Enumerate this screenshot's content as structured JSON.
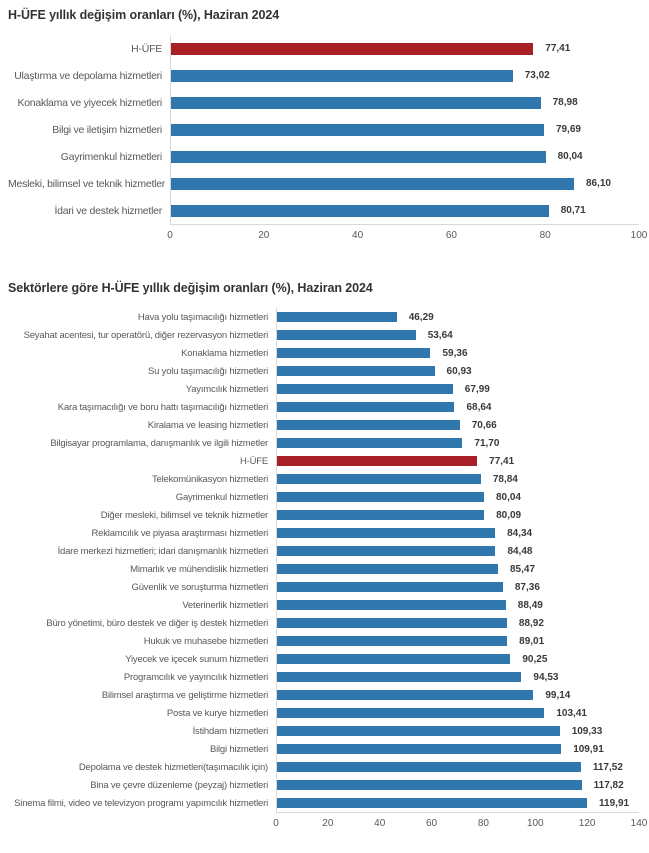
{
  "colors": {
    "background": "#FFFFFF",
    "bar_default": "#2F77AD",
    "bar_highlight": "#A81F25",
    "title_text": "#333333",
    "category_text": "#595959",
    "value_text": "#3A3A3A",
    "tick_text": "#595959",
    "axis_line": "#D9D9D9"
  },
  "chart_data": [
    {
      "type": "bar",
      "orientation": "horizontal",
      "title": "H-ÜFE yıllık değişim oranları (%), Haziran 2024",
      "xlabel": "",
      "ylabel": "",
      "xlim": [
        0,
        100
      ],
      "x_ticks": [
        0,
        20,
        40,
        60,
        80,
        100
      ],
      "grid": false,
      "legend": "none",
      "highlight_category": "H-ÜFE",
      "categories": [
        "H-ÜFE",
        "Ulaştırma ve depolama hizmetleri",
        "Konaklama ve yiyecek hizmetleri",
        "Bilgi ve iletişim hizmetleri",
        "Gayrimenkul hizmetleri",
        "Mesleki, bilimsel ve teknik hizmetler",
        "İdari ve destek hizmetler"
      ],
      "values": [
        77.41,
        73.02,
        78.98,
        79.69,
        80.04,
        86.1,
        80.71
      ],
      "value_labels": [
        "77,41",
        "73,02",
        "78,98",
        "79,69",
        "80,04",
        "86,10",
        "80,71"
      ]
    },
    {
      "type": "bar",
      "orientation": "horizontal",
      "title": "Sektörlere göre H-ÜFE yıllık değişim oranları (%), Haziran 2024",
      "xlabel": "",
      "ylabel": "",
      "xlim": [
        0,
        140
      ],
      "x_ticks": [
        0,
        20,
        40,
        60,
        80,
        100,
        120,
        140
      ],
      "grid": false,
      "legend": "none",
      "highlight_category": "H-ÜFE",
      "categories": [
        "Hava yolu taşımacılığı hizmetleri",
        "Seyahat acentesi, tur operatörü, diğer rezervasyon hizmetleri",
        "Konaklama hizmetleri",
        "Su yolu taşımacılığı hizmetleri",
        "Yayımcılık hizmetleri",
        "Kara taşımacılığı ve boru hattı taşımacılığı hizmetleri",
        "Kiralama ve leasing hizmetleri",
        "Bilgisayar programlama, danışmanlık ve ilgili hizmetler",
        "H-ÜFE",
        "Telekomünikasyon hizmetleri",
        "Gayrimenkul hizmetleri",
        "Diğer mesleki, bilimsel ve teknik hizmetler",
        "Reklamcılık ve piyasa araştırması hizmetleri",
        "İdare merkezi hizmetleri; idari danışmanlık hizmetleri",
        "Mimarlık ve mühendislik hizmetleri",
        "Güvenlik ve soruşturma hizmetleri",
        "Veterinerlik hizmetleri",
        "Büro yönetimi, büro destek ve diğer iş destek hizmetleri",
        "Hukuk ve muhasebe hizmetleri",
        "Yiyecek ve içecek sunum hizmetleri",
        "Programcılık ve yayıncılık hizmetleri",
        "Bilimsel araştırma ve geliştirme hizmetleri",
        "Posta ve kurye hizmetleri",
        "İstihdam hizmetleri",
        "Bilgi hizmetleri",
        "Depolama ve destek hizmetleri(taşımacılık için)",
        "Bina ve çevre düzenleme (peyzaj) hizmetleri",
        "Sinema filmi, video ve televizyon programı yapımcılık hizmetleri"
      ],
      "values": [
        46.29,
        53.64,
        59.36,
        60.93,
        67.99,
        68.64,
        70.66,
        71.7,
        77.41,
        78.84,
        80.04,
        80.09,
        84.34,
        84.48,
        85.47,
        87.36,
        88.49,
        88.92,
        89.01,
        90.25,
        94.53,
        99.14,
        103.41,
        109.33,
        109.91,
        117.52,
        117.82,
        119.91
      ],
      "value_labels": [
        "46,29",
        "53,64",
        "59,36",
        "60,93",
        "67,99",
        "68,64",
        "70,66",
        "71,70",
        "77,41",
        "78,84",
        "80,04",
        "80,09",
        "84,34",
        "84,48",
        "85,47",
        "87,36",
        "88,49",
        "88,92",
        "89,01",
        "90,25",
        "94,53",
        "99,14",
        "103,41",
        "109,33",
        "109,91",
        "117,52",
        "117,82",
        "119,91"
      ]
    }
  ]
}
